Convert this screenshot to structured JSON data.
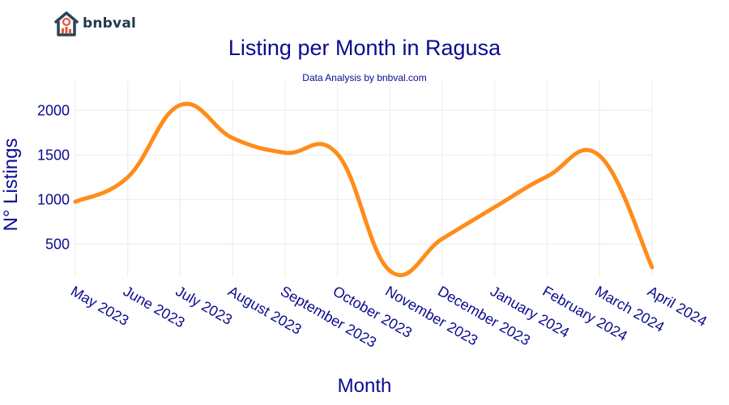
{
  "brand": {
    "name": "bnbval",
    "colors": {
      "house": "#2c4453",
      "bars": "#e8553e"
    }
  },
  "chart_data": {
    "type": "line",
    "title": "Listing per Month in Ragusa",
    "subtitle": "Data Analysis by bnbval.com",
    "xlabel": "Month",
    "ylabel": "N° Listings",
    "categories": [
      "May 2023",
      "June 2023",
      "July 2023",
      "August 2023",
      "September 2023",
      "October 2023",
      "November 2023",
      "December 2023",
      "January 2024",
      "February 2024",
      "March 2024",
      "April 2024"
    ],
    "series": [
      {
        "values": [
          975,
          1250,
          2060,
          1690,
          1525,
          1510,
          200,
          560,
          915,
          1260,
          1490,
          240
        ],
        "color": "#ff8c1a"
      }
    ],
    "yticks": [
      500,
      1000,
      1500,
      2000
    ],
    "ylim": [
      130,
      2330
    ],
    "grid": true
  }
}
